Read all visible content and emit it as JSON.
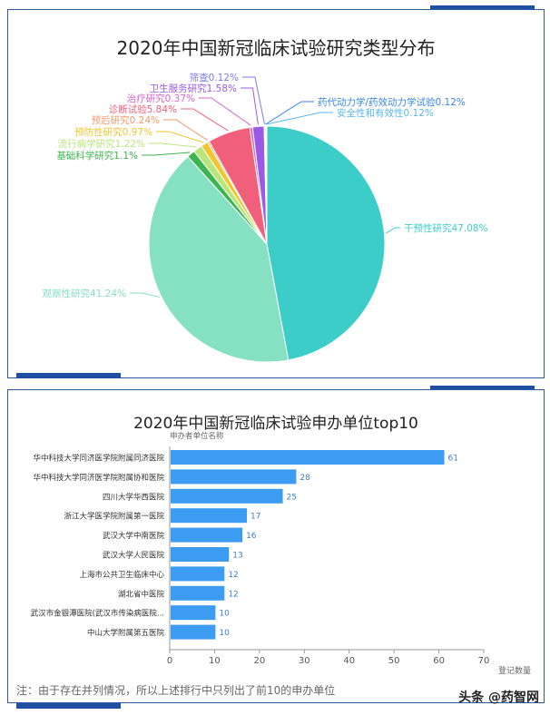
{
  "chart_data": [
    {
      "type": "pie",
      "title": "2020年中国新冠临床试验研究类型分布",
      "slices": [
        {
          "label": "干预性研究47.08%",
          "value": 47.08,
          "color": "#3dcdc9"
        },
        {
          "label": "观察性研究41.24%",
          "value": 41.24,
          "color": "#86e0c2"
        },
        {
          "label": "基础科学研究1.1%",
          "value": 1.1,
          "color": "#3db44f"
        },
        {
          "label": "流行病学研究1.22%",
          "value": 1.22,
          "color": "#b9e67a"
        },
        {
          "label": "预防性研究0.97%",
          "value": 0.97,
          "color": "#f2c531"
        },
        {
          "label": "预后研究0.24%",
          "value": 0.24,
          "color": "#f59a6a"
        },
        {
          "label": "诊断试验5.84%",
          "value": 5.84,
          "color": "#f1607a"
        },
        {
          "label": "治疗研究0.37%",
          "value": 0.37,
          "color": "#d567c9"
        },
        {
          "label": "卫生服务研究1.58%",
          "value": 1.58,
          "color": "#9b59e8"
        },
        {
          "label": "筛查0.12%",
          "value": 0.12,
          "color": "#7b7cf0"
        },
        {
          "label": "药代动力学/药效动力学试验0.12%",
          "value": 0.12,
          "color": "#3a86e6"
        },
        {
          "label": "安全性和有效性0.12%",
          "value": 0.12,
          "color": "#59b7ec"
        }
      ]
    },
    {
      "type": "bar",
      "orientation": "horizontal",
      "title": "2020年中国新冠临床试验申办单位top10",
      "ylabel": "申办者单位名称",
      "xlabel": "登记数量",
      "xlim": [
        0,
        70
      ],
      "xticks": [
        "0",
        "10",
        "20",
        "30",
        "40",
        "50",
        "60",
        "70"
      ],
      "color": "#3b9cf2",
      "categories": [
        "华中科技大学同济医学院附属同济医院",
        "华中科技大学同济医学院附属协和医院",
        "四川大学华西医院",
        "浙江大学医学院附属第一医院",
        "武汉大学中南医院",
        "武汉大学人民医院",
        "上海市公共卫生临床中心",
        "湖北省中医院",
        "武汉市金银潭医院(武汉市传染病医院...",
        "中山大学附属第五医院"
      ],
      "values": [
        61,
        28,
        25,
        17,
        16,
        13,
        12,
        12,
        10,
        10
      ]
    }
  ],
  "footnote": "注：由于存在并列情况，所以上述排行中只列出了前10的申办单位",
  "watermark": "头条 @药智网"
}
